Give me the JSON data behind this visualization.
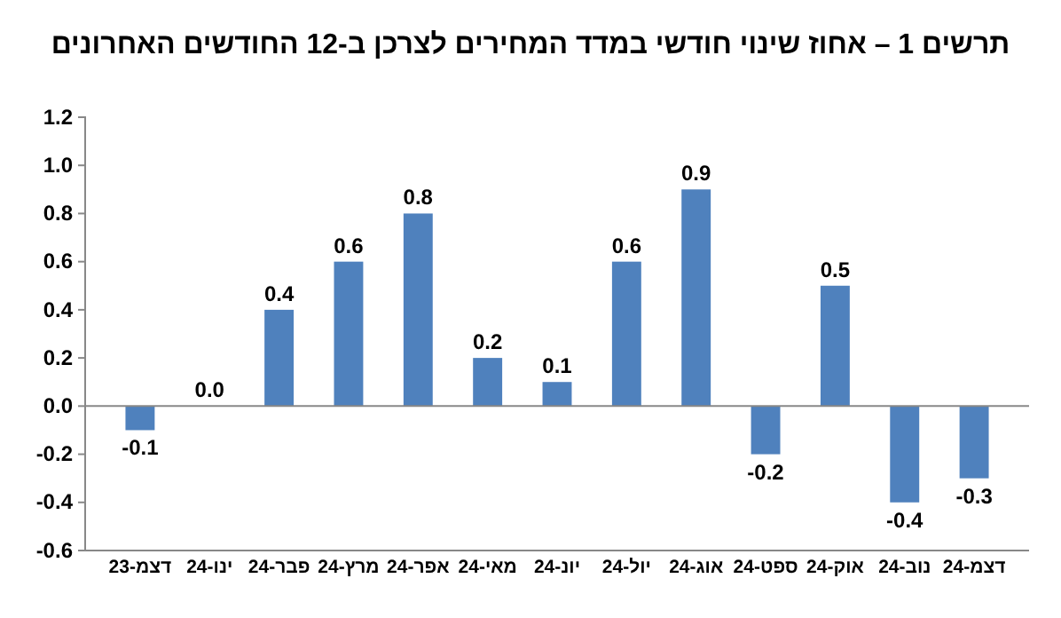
{
  "chart_data": {
    "type": "bar",
    "title": "תרשים 1 – אחוז שינוי חודשי במדד המחירים לצרכן ב-12 החודשים האחרונים",
    "categories": [
      "דצמ-23",
      "ינו-24",
      "פבר-24",
      "מרץ-24",
      "אפר-24",
      "מאי-24",
      "יונ-24",
      "יול-24",
      "אוג-24",
      "ספט-24",
      "אוק-24",
      "נוב-24",
      "דצמ-24"
    ],
    "values": [
      -0.1,
      0.0,
      0.4,
      0.6,
      0.8,
      0.2,
      0.1,
      0.6,
      0.9,
      -0.2,
      0.5,
      -0.4,
      -0.3
    ],
    "value_labels": [
      "-0.1",
      "0.0",
      "0.4",
      "0.6",
      "0.8",
      "0.2",
      "0.1",
      "0.6",
      "0.9",
      "-0.2",
      "0.5",
      "-0.4",
      "-0.3"
    ],
    "color": "#4f81bd",
    "ylim": [
      -0.6,
      1.2
    ],
    "yticks": [
      1.2,
      {
        "value": 1.0,
        "label": "1.0"
      },
      0.8,
      0.6,
      0.4,
      0.2,
      {
        "value": 0,
        "label": "0.0"
      },
      -0.2,
      -0.4,
      -0.6
    ]
  }
}
